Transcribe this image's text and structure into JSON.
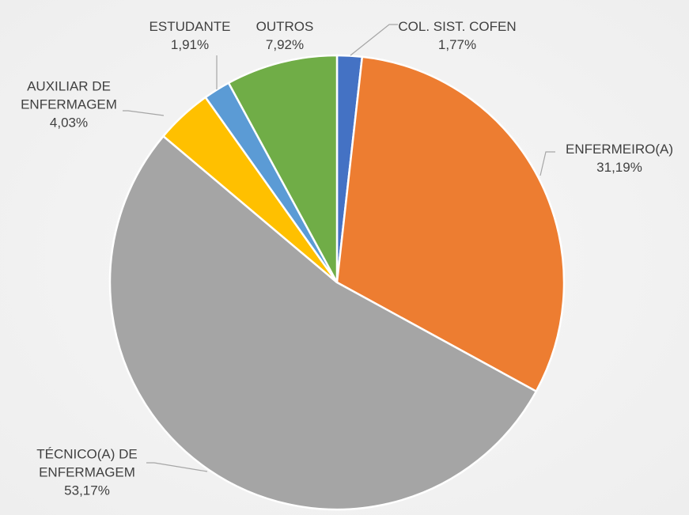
{
  "chart_data": {
    "type": "pie",
    "categories": [
      "COL. SIST. COFEN",
      "ENFERMEIRO(A)",
      "TÉCNICO(A) DE ENFERMAGEM",
      "AUXILIAR DE ENFERMAGEM",
      "ESTUDANTE",
      "OUTROS"
    ],
    "values": [
      1.77,
      31.19,
      53.17,
      4.03,
      1.91,
      7.92
    ],
    "value_labels": [
      "1,77%",
      "31,19%",
      "53,17%",
      "4,03%",
      "1,91%",
      "7,92%"
    ],
    "colors": [
      "#4472c4",
      "#ed7d31",
      "#a5a5a5",
      "#ffc000",
      "#5b9bd5",
      "#70ad47"
    ]
  }
}
